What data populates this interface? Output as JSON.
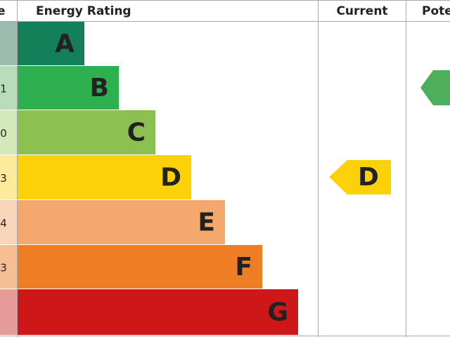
{
  "header": {
    "score": "e",
    "rating": "Energy Rating",
    "current": "Current",
    "potential": "Pote"
  },
  "bands": [
    {
      "score": "",
      "letter": "A"
    },
    {
      "score": "1",
      "letter": "B"
    },
    {
      "score": "0",
      "letter": "C"
    },
    {
      "score": "3",
      "letter": "D"
    },
    {
      "score": "4",
      "letter": "E"
    },
    {
      "score": "3",
      "letter": "F"
    },
    {
      "score": "",
      "letter": "G"
    }
  ],
  "current": {
    "letter": "D"
  }
}
